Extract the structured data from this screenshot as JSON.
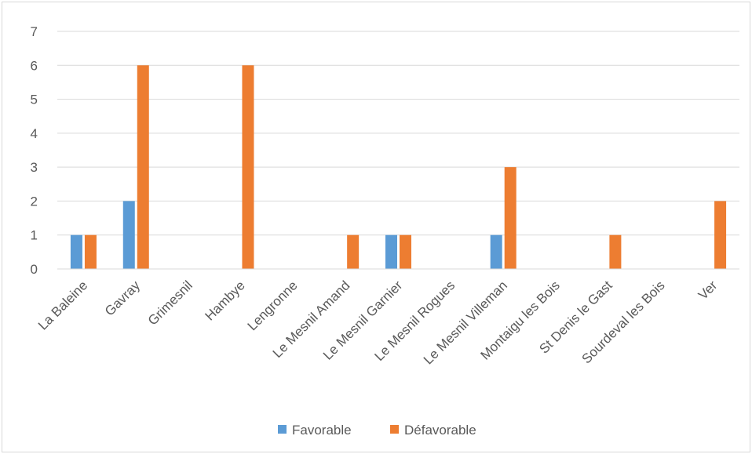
{
  "chart_data": {
    "type": "bar",
    "title": "",
    "xlabel": "",
    "ylabel": "",
    "ylim": [
      0,
      7
    ],
    "yticks": [
      0,
      1,
      2,
      3,
      4,
      5,
      6,
      7
    ],
    "grid": true,
    "legend_position": "bottom",
    "categories": [
      "La Baleine",
      "Gavray",
      "Grimesnil",
      "Hambye",
      "Lengronne",
      "Le Mesnil Amand",
      "Le Mesnil Garnier",
      "Le Mesnil Rogues",
      "Le Mesnil Villeman",
      "Montaigu les Bois",
      "St Denis le Gast",
      "Sourdeval les Bois",
      "Ver"
    ],
    "series": [
      {
        "name": "Favorable",
        "color": "#5b9bd5",
        "values": [
          1,
          2,
          0,
          0,
          0,
          0,
          1,
          0,
          1,
          0,
          0,
          0,
          0
        ]
      },
      {
        "name": "Défavorable",
        "color": "#ed7d31",
        "values": [
          1,
          6,
          0,
          6,
          0,
          1,
          1,
          0,
          3,
          0,
          1,
          0,
          2
        ]
      }
    ]
  }
}
